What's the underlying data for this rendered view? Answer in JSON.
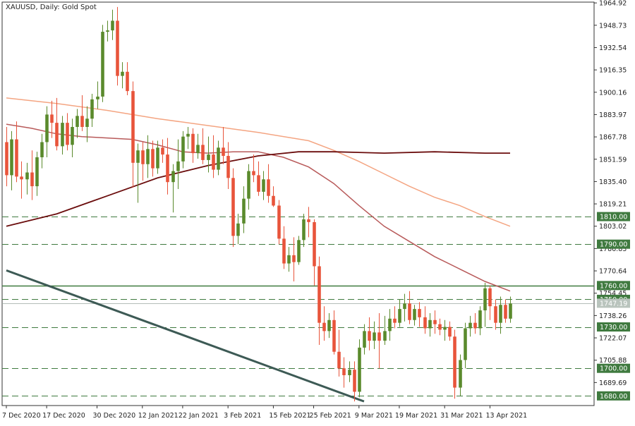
{
  "chart_data": {
    "type": "candlestick",
    "title": "XAUUSD, Daily:  Gold Spot",
    "timeframe": "Daily",
    "y_axis": {
      "range": [
        1673.0,
        1965.5
      ],
      "tick_labels": [
        "1964.92",
        "1948.73",
        "1932.54",
        "1916.35",
        "1900.16",
        "1883.97",
        "1867.78",
        "1851.59",
        "1835.40",
        "1819.21",
        "1803.02",
        "1786.83",
        "1770.64",
        "1754.45",
        "1738.26",
        "1722.07",
        "1705.88",
        "1689.69"
      ],
      "position": "right"
    },
    "x_axis": {
      "tick_labels": [
        "7 Dec 2020",
        "17 Dec 2020",
        "30 Dec 2020",
        "12 Jan 2021",
        "22 Jan 2021",
        "3 Feb 2021",
        "15 Feb 2021",
        "25 Feb 2021",
        "9 Mar 2021",
        "19 Mar 2021",
        "31 Mar 2021",
        "13 Apr 2021"
      ],
      "tick_bar_index": [
        0,
        8,
        18,
        27,
        35,
        44,
        53,
        61,
        70,
        78,
        87,
        96
      ]
    },
    "horizontal_levels": [
      {
        "label": "1810.00",
        "value": 1810.0,
        "style": "dashed"
      },
      {
        "label": "1790.00",
        "value": 1790.0,
        "style": "dashed"
      },
      {
        "label": "1760.00",
        "value": 1760.0,
        "style": "solid"
      },
      {
        "label": "1750.00",
        "value": 1750.0,
        "style": "dashed"
      },
      {
        "label": "1730.00",
        "value": 1730.0,
        "style": "dashed"
      },
      {
        "label": "1700.00",
        "value": 1700.0,
        "style": "dashed"
      },
      {
        "label": "1680.00",
        "value": 1680.0,
        "style": "dashed"
      }
    ],
    "current_price": {
      "label": "1747.19",
      "value": 1747.19
    },
    "candles": [
      {
        "o": 1864,
        "h": 1875,
        "l": 1832,
        "c": 1840
      },
      {
        "o": 1840,
        "h": 1872,
        "l": 1829,
        "c": 1866
      },
      {
        "o": 1866,
        "h": 1879,
        "l": 1835,
        "c": 1839
      },
      {
        "o": 1839,
        "h": 1850,
        "l": 1823,
        "c": 1837
      },
      {
        "o": 1837,
        "h": 1849,
        "l": 1826,
        "c": 1842
      },
      {
        "o": 1842,
        "h": 1858,
        "l": 1822,
        "c": 1832
      },
      {
        "o": 1832,
        "h": 1857,
        "l": 1825,
        "c": 1853
      },
      {
        "o": 1853,
        "h": 1870,
        "l": 1845,
        "c": 1864
      },
      {
        "o": 1864,
        "h": 1890,
        "l": 1853,
        "c": 1884
      },
      {
        "o": 1884,
        "h": 1894,
        "l": 1867,
        "c": 1878
      },
      {
        "o": 1878,
        "h": 1896,
        "l": 1858,
        "c": 1861
      },
      {
        "o": 1861,
        "h": 1883,
        "l": 1855,
        "c": 1878
      },
      {
        "o": 1878,
        "h": 1885,
        "l": 1858,
        "c": 1862
      },
      {
        "o": 1862,
        "h": 1881,
        "l": 1853,
        "c": 1875
      },
      {
        "o": 1875,
        "h": 1888,
        "l": 1867,
        "c": 1883
      },
      {
        "o": 1883,
        "h": 1898,
        "l": 1872,
        "c": 1875
      },
      {
        "o": 1875,
        "h": 1890,
        "l": 1864,
        "c": 1881
      },
      {
        "o": 1881,
        "h": 1899,
        "l": 1875,
        "c": 1895
      },
      {
        "o": 1895,
        "h": 1908,
        "l": 1888,
        "c": 1897
      },
      {
        "o": 1897,
        "h": 1949,
        "l": 1893,
        "c": 1944
      },
      {
        "o": 1944,
        "h": 1952,
        "l": 1937,
        "c": 1945
      },
      {
        "o": 1945,
        "h": 1960,
        "l": 1938,
        "c": 1952
      },
      {
        "o": 1952,
        "h": 1962,
        "l": 1905,
        "c": 1912
      },
      {
        "o": 1912,
        "h": 1922,
        "l": 1903,
        "c": 1915
      },
      {
        "o": 1915,
        "h": 1922,
        "l": 1898,
        "c": 1901
      },
      {
        "o": 1901,
        "h": 1908,
        "l": 1831,
        "c": 1849
      },
      {
        "o": 1849,
        "h": 1863,
        "l": 1820,
        "c": 1858
      },
      {
        "o": 1858,
        "h": 1864,
        "l": 1836,
        "c": 1848
      },
      {
        "o": 1848,
        "h": 1869,
        "l": 1838,
        "c": 1859
      },
      {
        "o": 1859,
        "h": 1865,
        "l": 1839,
        "c": 1845
      },
      {
        "o": 1845,
        "h": 1865,
        "l": 1841,
        "c": 1860
      },
      {
        "o": 1860,
        "h": 1866,
        "l": 1849,
        "c": 1855
      },
      {
        "o": 1855,
        "h": 1867,
        "l": 1826,
        "c": 1835
      },
      {
        "o": 1835,
        "h": 1848,
        "l": 1813,
        "c": 1843
      },
      {
        "o": 1843,
        "h": 1866,
        "l": 1830,
        "c": 1850
      },
      {
        "o": 1850,
        "h": 1872,
        "l": 1845,
        "c": 1868
      },
      {
        "o": 1868,
        "h": 1875,
        "l": 1859,
        "c": 1870
      },
      {
        "o": 1870,
        "h": 1874,
        "l": 1849,
        "c": 1856
      },
      {
        "o": 1856,
        "h": 1870,
        "l": 1852,
        "c": 1862
      },
      {
        "o": 1862,
        "h": 1874,
        "l": 1848,
        "c": 1851
      },
      {
        "o": 1851,
        "h": 1868,
        "l": 1842,
        "c": 1855
      },
      {
        "o": 1855,
        "h": 1869,
        "l": 1838,
        "c": 1844
      },
      {
        "o": 1844,
        "h": 1865,
        "l": 1840,
        "c": 1860
      },
      {
        "o": 1860,
        "h": 1875,
        "l": 1848,
        "c": 1854
      },
      {
        "o": 1854,
        "h": 1864,
        "l": 1830,
        "c": 1838
      },
      {
        "o": 1838,
        "h": 1845,
        "l": 1788,
        "c": 1796
      },
      {
        "o": 1796,
        "h": 1812,
        "l": 1790,
        "c": 1805
      },
      {
        "o": 1805,
        "h": 1832,
        "l": 1798,
        "c": 1823
      },
      {
        "o": 1823,
        "h": 1848,
        "l": 1815,
        "c": 1843
      },
      {
        "o": 1843,
        "h": 1855,
        "l": 1835,
        "c": 1840
      },
      {
        "o": 1840,
        "h": 1850,
        "l": 1825,
        "c": 1828
      },
      {
        "o": 1828,
        "h": 1843,
        "l": 1822,
        "c": 1837
      },
      {
        "o": 1837,
        "h": 1848,
        "l": 1820,
        "c": 1825
      },
      {
        "o": 1825,
        "h": 1832,
        "l": 1817,
        "c": 1818
      },
      {
        "o": 1818,
        "h": 1822,
        "l": 1790,
        "c": 1794
      },
      {
        "o": 1794,
        "h": 1803,
        "l": 1772,
        "c": 1776
      },
      {
        "o": 1776,
        "h": 1788,
        "l": 1770,
        "c": 1782
      },
      {
        "o": 1782,
        "h": 1795,
        "l": 1763,
        "c": 1777
      },
      {
        "o": 1777,
        "h": 1796,
        "l": 1775,
        "c": 1793
      },
      {
        "o": 1793,
        "h": 1812,
        "l": 1788,
        "c": 1808
      },
      {
        "o": 1808,
        "h": 1817,
        "l": 1795,
        "c": 1806
      },
      {
        "o": 1806,
        "h": 1808,
        "l": 1760,
        "c": 1774
      },
      {
        "o": 1774,
        "h": 1781,
        "l": 1717,
        "c": 1733
      },
      {
        "o": 1733,
        "h": 1745,
        "l": 1720,
        "c": 1727
      },
      {
        "o": 1727,
        "h": 1740,
        "l": 1722,
        "c": 1735
      },
      {
        "o": 1735,
        "h": 1742,
        "l": 1710,
        "c": 1712
      },
      {
        "o": 1712,
        "h": 1728,
        "l": 1694,
        "c": 1700
      },
      {
        "o": 1700,
        "h": 1708,
        "l": 1686,
        "c": 1695
      },
      {
        "o": 1695,
        "h": 1705,
        "l": 1690,
        "c": 1699
      },
      {
        "o": 1699,
        "h": 1705,
        "l": 1676,
        "c": 1683
      },
      {
        "o": 1683,
        "h": 1721,
        "l": 1679,
        "c": 1715
      },
      {
        "o": 1715,
        "h": 1732,
        "l": 1710,
        "c": 1727
      },
      {
        "o": 1727,
        "h": 1737,
        "l": 1713,
        "c": 1720
      },
      {
        "o": 1720,
        "h": 1734,
        "l": 1714,
        "c": 1726
      },
      {
        "o": 1726,
        "h": 1740,
        "l": 1700,
        "c": 1720
      },
      {
        "o": 1720,
        "h": 1738,
        "l": 1717,
        "c": 1727
      },
      {
        "o": 1727,
        "h": 1743,
        "l": 1720,
        "c": 1736
      },
      {
        "o": 1736,
        "h": 1745,
        "l": 1729,
        "c": 1733
      },
      {
        "o": 1733,
        "h": 1750,
        "l": 1730,
        "c": 1743
      },
      {
        "o": 1743,
        "h": 1754,
        "l": 1734,
        "c": 1747
      },
      {
        "o": 1747,
        "h": 1756,
        "l": 1732,
        "c": 1735
      },
      {
        "o": 1735,
        "h": 1746,
        "l": 1731,
        "c": 1743
      },
      {
        "o": 1743,
        "h": 1748,
        "l": 1730,
        "c": 1737
      },
      {
        "o": 1737,
        "h": 1745,
        "l": 1725,
        "c": 1729
      },
      {
        "o": 1729,
        "h": 1740,
        "l": 1723,
        "c": 1735
      },
      {
        "o": 1735,
        "h": 1742,
        "l": 1725,
        "c": 1732
      },
      {
        "o": 1732,
        "h": 1736,
        "l": 1724,
        "c": 1728
      },
      {
        "o": 1728,
        "h": 1735,
        "l": 1720,
        "c": 1730
      },
      {
        "o": 1730,
        "h": 1734,
        "l": 1720,
        "c": 1723
      },
      {
        "o": 1723,
        "h": 1728,
        "l": 1678,
        "c": 1686
      },
      {
        "o": 1686,
        "h": 1710,
        "l": 1680,
        "c": 1706
      },
      {
        "o": 1706,
        "h": 1733,
        "l": 1700,
        "c": 1729
      },
      {
        "o": 1729,
        "h": 1738,
        "l": 1723,
        "c": 1733
      },
      {
        "o": 1733,
        "h": 1740,
        "l": 1725,
        "c": 1729
      },
      {
        "o": 1729,
        "h": 1745,
        "l": 1724,
        "c": 1742
      },
      {
        "o": 1742,
        "h": 1762,
        "l": 1730,
        "c": 1758
      },
      {
        "o": 1758,
        "h": 1760,
        "l": 1735,
        "c": 1745
      },
      {
        "o": 1745,
        "h": 1750,
        "l": 1728,
        "c": 1733
      },
      {
        "o": 1733,
        "h": 1752,
        "l": 1725,
        "c": 1746
      },
      {
        "o": 1746,
        "h": 1750,
        "l": 1733,
        "c": 1736
      },
      {
        "o": 1736,
        "h": 1752,
        "l": 1733,
        "c": 1747
      }
    ],
    "moving_averages": [
      {
        "color": "#f4a582",
        "points": [
          [
            0,
            1896
          ],
          [
            10,
            1892
          ],
          [
            20,
            1887
          ],
          [
            30,
            1881
          ],
          [
            40,
            1876
          ],
          [
            50,
            1871
          ],
          [
            60,
            1865
          ],
          [
            65,
            1858
          ],
          [
            70,
            1850
          ],
          [
            75,
            1841
          ],
          [
            80,
            1832
          ],
          [
            85,
            1824
          ],
          [
            90,
            1818
          ],
          [
            95,
            1810
          ],
          [
            100,
            1803
          ]
        ]
      },
      {
        "color": "#b85a5a",
        "points": [
          [
            0,
            1877
          ],
          [
            5,
            1874
          ],
          [
            10,
            1870
          ],
          [
            15,
            1868
          ],
          [
            20,
            1867
          ],
          [
            25,
            1866
          ],
          [
            30,
            1862
          ],
          [
            35,
            1857
          ],
          [
            40,
            1856
          ],
          [
            45,
            1857
          ],
          [
            50,
            1857
          ],
          [
            55,
            1853
          ],
          [
            60,
            1846
          ],
          [
            65,
            1834
          ],
          [
            70,
            1818
          ],
          [
            75,
            1803
          ],
          [
            80,
            1792
          ],
          [
            85,
            1781
          ],
          [
            90,
            1772
          ],
          [
            95,
            1763
          ],
          [
            100,
            1756
          ]
        ]
      },
      {
        "color": "#6b0d0d",
        "points": [
          [
            0,
            1803
          ],
          [
            10,
            1812
          ],
          [
            20,
            1825
          ],
          [
            30,
            1838
          ],
          [
            40,
            1847
          ],
          [
            50,
            1854
          ],
          [
            58,
            1857
          ],
          [
            65,
            1857
          ],
          [
            75,
            1856
          ],
          [
            85,
            1857
          ],
          [
            95,
            1856
          ],
          [
            100,
            1856
          ]
        ]
      }
    ],
    "trendline": {
      "color": "#3d5a55",
      "points": [
        [
          0,
          1771
        ],
        [
          71,
          1676
        ]
      ]
    },
    "colors": {
      "up": "#5a8a2c",
      "down": "#e8543b",
      "grid": "#3f7a3f",
      "axis_text": "#222222"
    }
  }
}
